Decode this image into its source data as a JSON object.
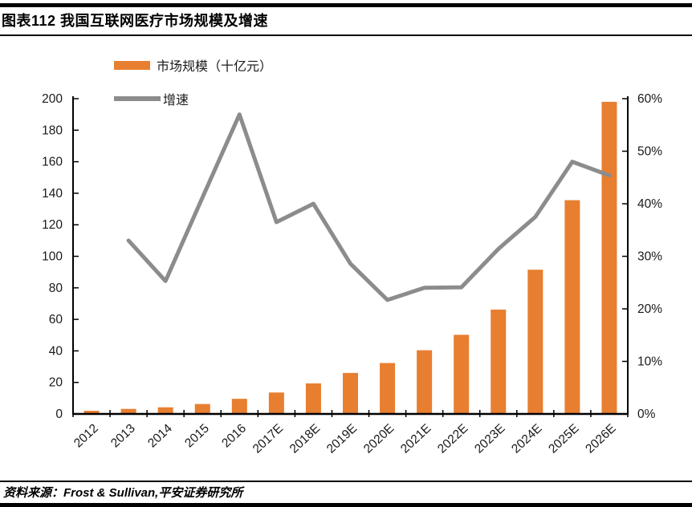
{
  "header": {
    "title": "图表112 我国互联网医疗市场规模及增速"
  },
  "footer": {
    "source": "资料来源：Frost & Sullivan,平安证券研究所"
  },
  "colors": {
    "bar": "#E87E2F",
    "line": "#8C8C8C",
    "axis": "#000000"
  },
  "chart_data": {
    "type": "bar+line",
    "title": "",
    "categories": [
      "2012",
      "2013",
      "2014",
      "2015",
      "2016",
      "2017E",
      "2018E",
      "2019E",
      "2020E",
      "2021E",
      "2022E",
      "2023E",
      "2024E",
      "2025E",
      "2026E"
    ],
    "series": [
      {
        "name": "市场规模（十亿元）",
        "type": "bar",
        "axis": "left",
        "color": "#E87E2F",
        "values": [
          2,
          3.2,
          4.2,
          6.3,
          9.6,
          13.6,
          19.4,
          26,
          32.3,
          40.4,
          50.2,
          66.2,
          91.5,
          135.6,
          198
        ]
      },
      {
        "name": "增速",
        "type": "line",
        "axis": "right",
        "color": "#8C8C8C",
        "values": [
          null,
          33,
          25.3,
          41.2,
          57,
          36.5,
          40,
          28.6,
          21.7,
          24,
          24.1,
          31.4,
          37.5,
          48,
          45.4
        ]
      }
    ],
    "left_axis": {
      "min": 0,
      "max": 200,
      "step": 20,
      "tick_labels": [
        "0",
        "20",
        "40",
        "60",
        "80",
        "100",
        "120",
        "140",
        "160",
        "180",
        "200"
      ]
    },
    "right_axis": {
      "min": 0,
      "max": 60,
      "step": 10,
      "tick_labels": [
        "0%",
        "10%",
        "20%",
        "30%",
        "40%",
        "50%",
        "60%"
      ]
    },
    "legend_position": "top-left",
    "grid": false
  }
}
